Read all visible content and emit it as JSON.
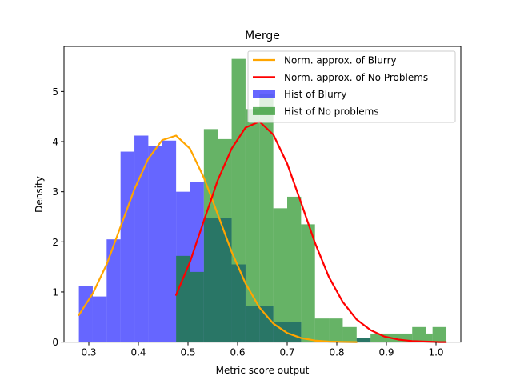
{
  "chart_data": {
    "type": "bar",
    "title": "Merge",
    "xlabel": "Metric score output",
    "ylabel": "Density",
    "xlim": [
      0.25,
      1.05
    ],
    "ylim": [
      0,
      5.9
    ],
    "xticks": [
      "0.3",
      "0.4",
      "0.5",
      "0.6",
      "0.7",
      "0.8",
      "0.9",
      "1.0"
    ],
    "xtick_values": [
      0.3,
      0.4,
      0.5,
      0.6,
      0.7,
      0.8,
      0.9,
      1.0
    ],
    "yticks": [
      "0",
      "1",
      "2",
      "3",
      "4",
      "5"
    ],
    "ytick_values": [
      0,
      1,
      2,
      3,
      4,
      5
    ],
    "grid": false,
    "legend_position": "top-right",
    "series": [
      {
        "name": "Hist of Blurry",
        "kind": "histogram",
        "color": "#0000ff",
        "opacity": 0.6,
        "bins": [
          {
            "x0": 0.28,
            "x1": 0.308,
            "y": 1.12
          },
          {
            "x0": 0.308,
            "x1": 0.336,
            "y": 0.91
          },
          {
            "x0": 0.336,
            "x1": 0.364,
            "y": 2.05
          },
          {
            "x0": 0.364,
            "x1": 0.392,
            "y": 3.8
          },
          {
            "x0": 0.392,
            "x1": 0.42,
            "y": 4.12
          },
          {
            "x0": 0.42,
            "x1": 0.448,
            "y": 3.92
          },
          {
            "x0": 0.448,
            "x1": 0.476,
            "y": 4.02
          },
          {
            "x0": 0.476,
            "x1": 0.504,
            "y": 3.0
          },
          {
            "x0": 0.504,
            "x1": 0.532,
            "y": 3.2
          },
          {
            "x0": 0.532,
            "x1": 0.56,
            "y": 2.48
          },
          {
            "x0": 0.56,
            "x1": 0.588,
            "y": 2.48
          },
          {
            "x0": 0.588,
            "x1": 0.616,
            "y": 1.55
          },
          {
            "x0": 0.616,
            "x1": 0.644,
            "y": 0.72
          },
          {
            "x0": 0.644,
            "x1": 0.672,
            "y": 0.72
          },
          {
            "x0": 0.672,
            "x1": 0.7,
            "y": 0.4
          },
          {
            "x0": 0.7,
            "x1": 0.728,
            "y": 0.4
          },
          {
            "x0": 0.728,
            "x1": 0.756,
            "y": 0.0
          },
          {
            "x0": 0.756,
            "x1": 0.784,
            "y": 0.0
          },
          {
            "x0": 0.784,
            "x1": 0.812,
            "y": 0.0
          },
          {
            "x0": 0.812,
            "x1": 0.84,
            "y": 0.0
          },
          {
            "x0": 0.84,
            "x1": 0.868,
            "y": 0.08
          }
        ]
      },
      {
        "name": "Hist of No problems",
        "kind": "histogram",
        "color": "#008000",
        "opacity": 0.6,
        "bins": [
          {
            "x0": 0.476,
            "x1": 0.504,
            "y": 1.72
          },
          {
            "x0": 0.504,
            "x1": 0.532,
            "y": 1.4
          },
          {
            "x0": 0.532,
            "x1": 0.56,
            "y": 4.25
          },
          {
            "x0": 0.56,
            "x1": 0.588,
            "y": 4.05
          },
          {
            "x0": 0.588,
            "x1": 0.616,
            "y": 5.65
          },
          {
            "x0": 0.616,
            "x1": 0.644,
            "y": 4.65
          },
          {
            "x0": 0.644,
            "x1": 0.672,
            "y": 4.95
          },
          {
            "x0": 0.672,
            "x1": 0.7,
            "y": 2.67
          },
          {
            "x0": 0.7,
            "x1": 0.728,
            "y": 2.9
          },
          {
            "x0": 0.728,
            "x1": 0.756,
            "y": 2.35
          },
          {
            "x0": 0.756,
            "x1": 0.784,
            "y": 0.47
          },
          {
            "x0": 0.784,
            "x1": 0.812,
            "y": 0.47
          },
          {
            "x0": 0.812,
            "x1": 0.84,
            "y": 0.3
          },
          {
            "x0": 0.84,
            "x1": 0.868,
            "y": 0.08
          },
          {
            "x0": 0.868,
            "x1": 0.896,
            "y": 0.17
          },
          {
            "x0": 0.896,
            "x1": 0.924,
            "y": 0.17
          },
          {
            "x0": 0.924,
            "x1": 0.952,
            "y": 0.17
          },
          {
            "x0": 0.952,
            "x1": 0.98,
            "y": 0.3
          },
          {
            "x0": 0.98,
            "x1": 0.993,
            "y": 0.17
          },
          {
            "x0": 0.993,
            "x1": 1.021,
            "y": 0.3
          }
        ]
      },
      {
        "name": "Norm. approx. of Blurry",
        "kind": "line",
        "color": "#ffa500",
        "x": [
          0.28,
          0.308,
          0.336,
          0.364,
          0.392,
          0.42,
          0.448,
          0.476,
          0.504,
          0.532,
          0.56,
          0.588,
          0.616,
          0.644,
          0.672,
          0.7,
          0.728,
          0.756,
          0.784,
          0.812,
          0.84
        ],
        "y": [
          0.54,
          0.97,
          1.55,
          2.3,
          3.05,
          3.66,
          4.03,
          4.12,
          3.86,
          3.28,
          2.55,
          1.8,
          1.17,
          0.69,
          0.37,
          0.18,
          0.08,
          0.03,
          0.01,
          0.003,
          0.0
        ]
      },
      {
        "name": "Norm. approx. of No Problems",
        "kind": "line",
        "color": "#ff0000",
        "x": [
          0.476,
          0.504,
          0.532,
          0.56,
          0.588,
          0.616,
          0.644,
          0.672,
          0.7,
          0.728,
          0.756,
          0.784,
          0.812,
          0.84,
          0.868,
          0.896,
          0.924,
          0.952,
          0.98,
          1.008,
          1.02
        ],
        "y": [
          0.94,
          1.6,
          2.42,
          3.23,
          3.86,
          4.28,
          4.4,
          4.14,
          3.56,
          2.78,
          1.98,
          1.3,
          0.8,
          0.45,
          0.24,
          0.11,
          0.05,
          0.02,
          0.01,
          0.0,
          0.0
        ]
      }
    ],
    "legend": [
      {
        "label": "Norm. approx. of Blurry",
        "kind": "line",
        "color": "#ffa500"
      },
      {
        "label": "Norm. approx. of No Problems",
        "kind": "line",
        "color": "#ff0000"
      },
      {
        "label": "Hist of Blurry",
        "kind": "patch",
        "color": "#0000ff",
        "opacity": 0.6
      },
      {
        "label": "Hist of No problems",
        "kind": "patch",
        "color": "#008000",
        "opacity": 0.6
      }
    ]
  }
}
